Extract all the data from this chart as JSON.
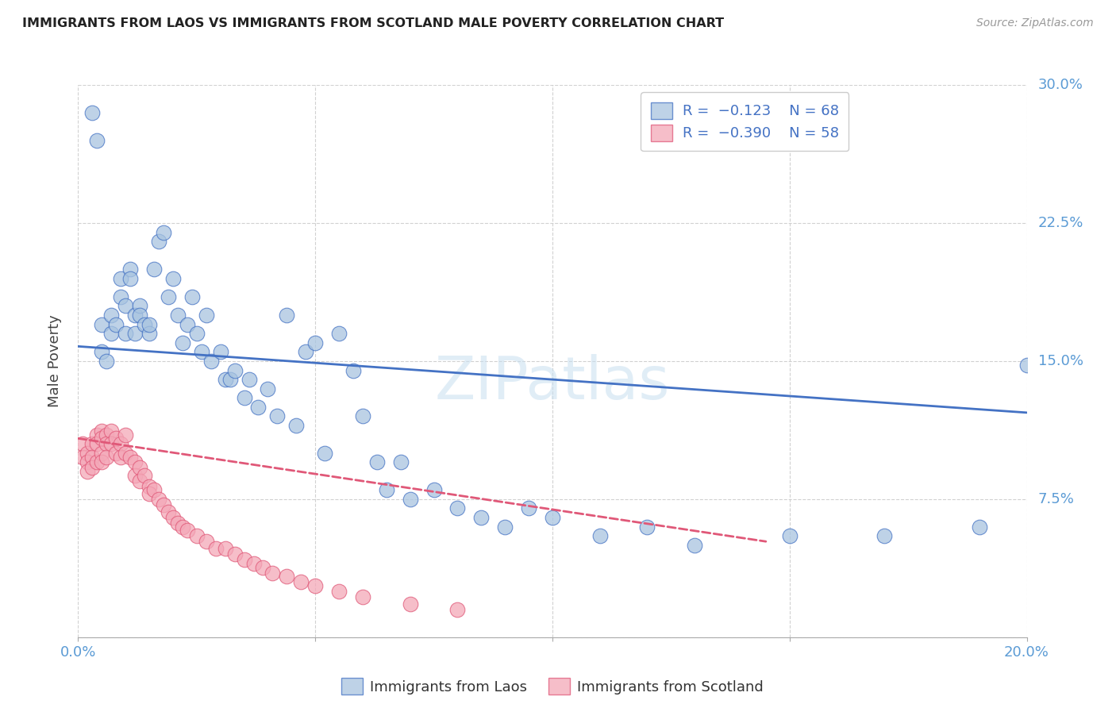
{
  "title": "IMMIGRANTS FROM LAOS VS IMMIGRANTS FROM SCOTLAND MALE POVERTY CORRELATION CHART",
  "source": "Source: ZipAtlas.com",
  "ylabel": "Male Poverty",
  "x_min": 0.0,
  "x_max": 0.2,
  "y_min": 0.0,
  "y_max": 0.3,
  "x_ticks": [
    0.0,
    0.05,
    0.1,
    0.15,
    0.2
  ],
  "x_tick_labels": [
    "0.0%",
    "",
    "",
    "",
    "20.0%"
  ],
  "y_ticks": [
    0.0,
    0.075,
    0.15,
    0.225,
    0.3
  ],
  "y_tick_labels_right": [
    "",
    "7.5%",
    "15.0%",
    "22.5%",
    "30.0%"
  ],
  "color_laos": "#a8c4e0",
  "color_scotland": "#f4a8b8",
  "color_laos_line": "#4472c4",
  "color_scotland_line": "#e05878",
  "color_axis_labels": "#5b9bd5",
  "laos_x": [
    0.003,
    0.004,
    0.005,
    0.005,
    0.006,
    0.007,
    0.007,
    0.008,
    0.009,
    0.009,
    0.01,
    0.01,
    0.011,
    0.011,
    0.012,
    0.012,
    0.013,
    0.013,
    0.014,
    0.015,
    0.015,
    0.016,
    0.017,
    0.018,
    0.019,
    0.02,
    0.021,
    0.022,
    0.023,
    0.024,
    0.025,
    0.026,
    0.027,
    0.028,
    0.03,
    0.031,
    0.032,
    0.033,
    0.035,
    0.036,
    0.038,
    0.04,
    0.042,
    0.044,
    0.046,
    0.048,
    0.05,
    0.052,
    0.055,
    0.058,
    0.06,
    0.063,
    0.065,
    0.068,
    0.07,
    0.075,
    0.08,
    0.085,
    0.09,
    0.095,
    0.1,
    0.11,
    0.12,
    0.13,
    0.15,
    0.17,
    0.19,
    0.2
  ],
  "laos_y": [
    0.285,
    0.27,
    0.17,
    0.155,
    0.15,
    0.175,
    0.165,
    0.17,
    0.195,
    0.185,
    0.18,
    0.165,
    0.2,
    0.195,
    0.175,
    0.165,
    0.18,
    0.175,
    0.17,
    0.165,
    0.17,
    0.2,
    0.215,
    0.22,
    0.185,
    0.195,
    0.175,
    0.16,
    0.17,
    0.185,
    0.165,
    0.155,
    0.175,
    0.15,
    0.155,
    0.14,
    0.14,
    0.145,
    0.13,
    0.14,
    0.125,
    0.135,
    0.12,
    0.175,
    0.115,
    0.155,
    0.16,
    0.1,
    0.165,
    0.145,
    0.12,
    0.095,
    0.08,
    0.095,
    0.075,
    0.08,
    0.07,
    0.065,
    0.06,
    0.07,
    0.065,
    0.055,
    0.06,
    0.05,
    0.055,
    0.055,
    0.06,
    0.148
  ],
  "scotland_x": [
    0.001,
    0.001,
    0.002,
    0.002,
    0.002,
    0.003,
    0.003,
    0.003,
    0.004,
    0.004,
    0.004,
    0.005,
    0.005,
    0.005,
    0.005,
    0.006,
    0.006,
    0.006,
    0.007,
    0.007,
    0.008,
    0.008,
    0.009,
    0.009,
    0.01,
    0.01,
    0.011,
    0.012,
    0.012,
    0.013,
    0.013,
    0.014,
    0.015,
    0.015,
    0.016,
    0.017,
    0.018,
    0.019,
    0.02,
    0.021,
    0.022,
    0.023,
    0.025,
    0.027,
    0.029,
    0.031,
    0.033,
    0.035,
    0.037,
    0.039,
    0.041,
    0.044,
    0.047,
    0.05,
    0.055,
    0.06,
    0.07,
    0.08
  ],
  "scotland_y": [
    0.105,
    0.098,
    0.1,
    0.095,
    0.09,
    0.105,
    0.098,
    0.092,
    0.11,
    0.105,
    0.095,
    0.112,
    0.108,
    0.1,
    0.095,
    0.11,
    0.105,
    0.098,
    0.112,
    0.105,
    0.108,
    0.1,
    0.105,
    0.098,
    0.11,
    0.1,
    0.098,
    0.095,
    0.088,
    0.092,
    0.085,
    0.088,
    0.082,
    0.078,
    0.08,
    0.075,
    0.072,
    0.068,
    0.065,
    0.062,
    0.06,
    0.058,
    0.055,
    0.052,
    0.048,
    0.048,
    0.045,
    0.042,
    0.04,
    0.038,
    0.035,
    0.033,
    0.03,
    0.028,
    0.025,
    0.022,
    0.018,
    0.015
  ],
  "laos_line_x0": 0.0,
  "laos_line_x1": 0.2,
  "laos_line_y0": 0.158,
  "laos_line_y1": 0.122,
  "scotland_line_x0": 0.0,
  "scotland_line_x1": 0.145,
  "scotland_line_y0": 0.108,
  "scotland_line_y1": 0.052,
  "grid_color": "#cccccc",
  "background_color": "#ffffff"
}
